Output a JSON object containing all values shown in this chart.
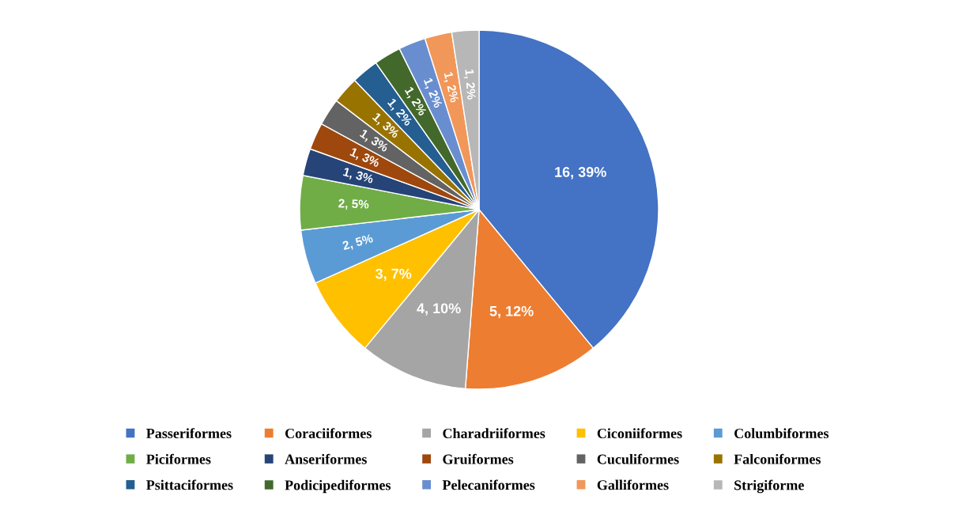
{
  "chart_data": {
    "type": "pie",
    "categories": [
      "Passeriformes",
      "Coraciiformes",
      "Charadriiformes",
      "Ciconiiformes",
      "Columbiformes",
      "Piciformes",
      "Anseriformes",
      "Gruiformes",
      "Cuculiformes",
      "Falconiformes",
      "Psittaciformes",
      "Podicipediformes",
      "Pelecaniformes",
      "Galliformes",
      "Strigiforme"
    ],
    "values": [
      16,
      5,
      4,
      3,
      2,
      2,
      1,
      1,
      1,
      1,
      1,
      1,
      1,
      1,
      1
    ],
    "colors": [
      "#4472c4",
      "#ed7d31",
      "#a5a5a5",
      "#ffc000",
      "#5b9bd5",
      "#70ad47",
      "#264478",
      "#9e480e",
      "#636363",
      "#997300",
      "#255e91",
      "#43682b",
      "#698ed0",
      "#f1975a",
      "#b7b7b7"
    ],
    "value_labels": [
      "16, 39%",
      "5, 12%",
      "4, 10%",
      "3, 7%",
      "2, 5%",
      "2, 5%",
      "1, 3%",
      "1, 3%",
      "1, 3%",
      "1, 3%",
      "1, 2%",
      "1, 2%",
      "1, 2%",
      "1, 2%",
      "1, 2%"
    ],
    "legend": "bottom"
  }
}
